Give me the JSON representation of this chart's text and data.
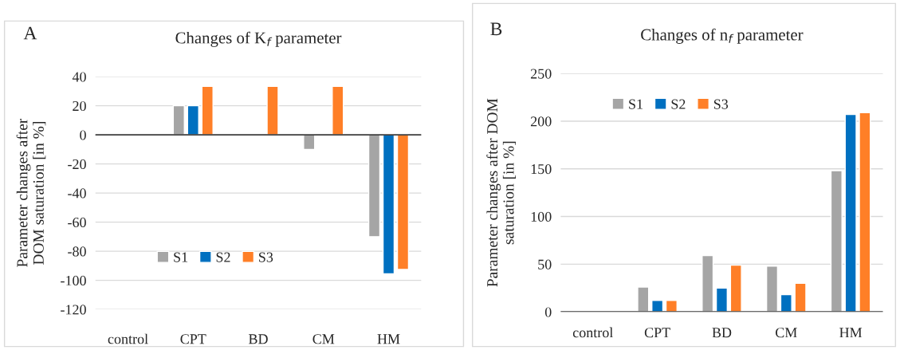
{
  "chart_data": [
    {
      "type": "bar",
      "title": "Changes of K$_{f}$ parameter",
      "ylabel": "Parameter changes after\nDOM saturation [in %]",
      "annotations": [
        "A"
      ],
      "categories": [
        "control",
        "CPT",
        "BD",
        "CM",
        "HM"
      ],
      "series": [
        {
          "name": "S1",
          "color": "#a5a5a5",
          "values": [
            null,
            20,
            null,
            -10,
            -70
          ]
        },
        {
          "name": "S2",
          "color": "#0070c0",
          "values": [
            null,
            20,
            null,
            null,
            -95.5
          ]
        },
        {
          "name": "S3",
          "color": "#ff7f27",
          "values": [
            null,
            33.3,
            33.3,
            33.3,
            -92.5
          ]
        }
      ],
      "ylim": [
        -120,
        40
      ],
      "yticks": [
        -120,
        -100,
        -80,
        -60,
        -40,
        -20,
        0,
        20,
        40
      ],
      "grid": "y",
      "legend": "bottom left"
    },
    {
      "type": "bar",
      "title": "Changes of n$_{f}$ parameter",
      "ylabel": "Parameter changes after DOM\nsaturation [in %]",
      "annotations": [
        "B"
      ],
      "categories": [
        "control",
        "CPT",
        "BD",
        "CM",
        "HM"
      ],
      "series": [
        {
          "name": "S1",
          "color": "#a5a5a5",
          "values": [
            null,
            26,
            59,
            48,
            148
          ]
        },
        {
          "name": "S2",
          "color": "#0070c0",
          "values": [
            null,
            12,
            25,
            18,
            207
          ]
        },
        {
          "name": "S3",
          "color": "#ff7f27",
          "values": [
            null,
            12,
            49,
            30,
            209
          ]
        }
      ],
      "ylim": [
        0,
        250
      ],
      "yticks": [
        0,
        50,
        100,
        150,
        200,
        250
      ],
      "grid": "y",
      "legend": "top left"
    }
  ]
}
